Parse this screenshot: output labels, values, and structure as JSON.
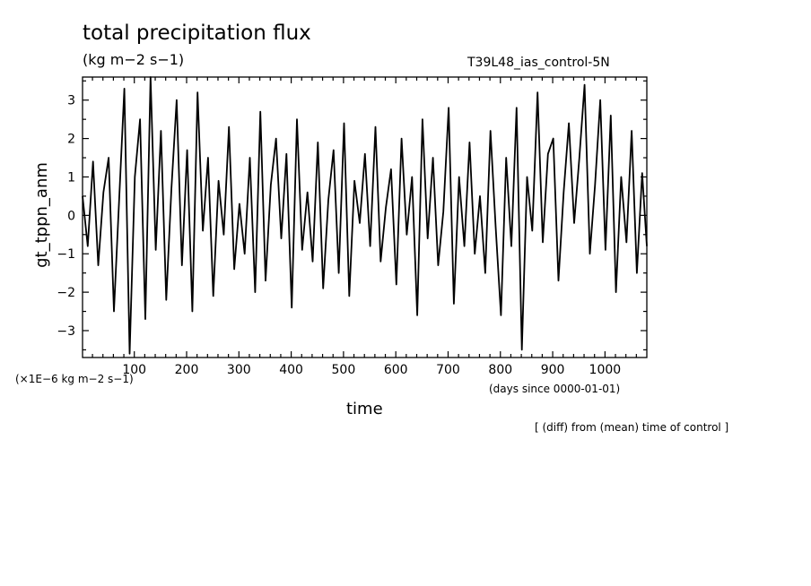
{
  "chart_data": {
    "type": "line",
    "title": "total precipitation flux",
    "units": "(kg m−2 s−1)",
    "run_name": "T39L48_ias_control-5N",
    "xlabel": "time",
    "x_units_note": "(days since 0000-01-01)",
    "ylabel": "gt_tppn_anm",
    "y_scale_note": "(×1E−6 kg m−2 s−1)",
    "footnote": "[ (diff) from (mean) time of control ]",
    "xlim": [
      1,
      1080
    ],
    "ylim": [
      -3.7,
      3.6
    ],
    "x_ticks": [
      100,
      200,
      300,
      400,
      500,
      600,
      700,
      800,
      900,
      1000
    ],
    "y_ticks": [
      -3,
      -2,
      -1,
      0,
      1,
      2,
      3
    ],
    "x_tick_labels": [
      "100",
      "200",
      "300",
      "400",
      "500",
      "600",
      "700",
      "800",
      "900",
      "1000"
    ],
    "y_tick_labels": [
      "−3",
      "−2",
      "−1",
      "0",
      "1",
      "2",
      "3"
    ],
    "grid": false,
    "line_color": "#000000",
    "series": [
      {
        "x": [
          1,
          11,
          21,
          31,
          41,
          51,
          61,
          71,
          81,
          91,
          101,
          111,
          121,
          131,
          141,
          151,
          161,
          171,
          181,
          191,
          201,
          211,
          221,
          231,
          241,
          251,
          261,
          271,
          281,
          291,
          301,
          311,
          321,
          331,
          341,
          351,
          361,
          371,
          381,
          391,
          401,
          411,
          421,
          431,
          441,
          451,
          461,
          471,
          481,
          491,
          501,
          511,
          521,
          531,
          541,
          551,
          561,
          571,
          581,
          591,
          601,
          611,
          621,
          631,
          641,
          651,
          661,
          671,
          681,
          691,
          701,
          711,
          721,
          731,
          741,
          751,
          761,
          771,
          781,
          791,
          801,
          811,
          821,
          831,
          841,
          851,
          861,
          871,
          881,
          891,
          901,
          911,
          921,
          931,
          941,
          951,
          961,
          971,
          981,
          991,
          1001,
          1011,
          1021,
          1031,
          1041,
          1051,
          1061,
          1071,
          1080
        ],
        "y": [
          0.5,
          -0.8,
          1.4,
          -1.3,
          0.6,
          1.5,
          -2.5,
          0.4,
          3.3,
          -3.6,
          1.0,
          2.5,
          -2.7,
          3.6,
          -0.9,
          2.2,
          -2.2,
          0.7,
          3.0,
          -1.3,
          1.7,
          -2.5,
          3.2,
          -0.4,
          1.5,
          -2.1,
          0.9,
          -0.5,
          2.3,
          -1.4,
          0.3,
          -1.0,
          1.5,
          -2.0,
          2.7,
          -1.7,
          0.8,
          2.0,
          -0.6,
          1.6,
          -2.4,
          2.5,
          -0.9,
          0.6,
          -1.2,
          1.9,
          -1.9,
          0.4,
          1.7,
          -1.5,
          2.4,
          -2.1,
          0.9,
          -0.2,
          1.6,
          -0.8,
          2.3,
          -1.2,
          0.2,
          1.2,
          -1.8,
          2.0,
          -0.5,
          1.0,
          -2.6,
          2.5,
          -0.6,
          1.5,
          -1.3,
          0.1,
          2.8,
          -2.3,
          1.0,
          -0.8,
          1.9,
          -1.0,
          0.5,
          -1.5,
          2.2,
          -0.3,
          -2.6,
          1.5,
          -0.8,
          2.8,
          -3.5,
          1.0,
          -0.4,
          3.2,
          -0.7,
          1.6,
          2.0,
          -1.7,
          0.6,
          2.4,
          -0.2,
          1.5,
          3.4,
          -1.0,
          0.8,
          3.0,
          -0.9,
          2.6,
          -2.0,
          1.0,
          -0.7,
          2.2,
          -1.5,
          1.1,
          -0.8
        ]
      }
    ]
  }
}
